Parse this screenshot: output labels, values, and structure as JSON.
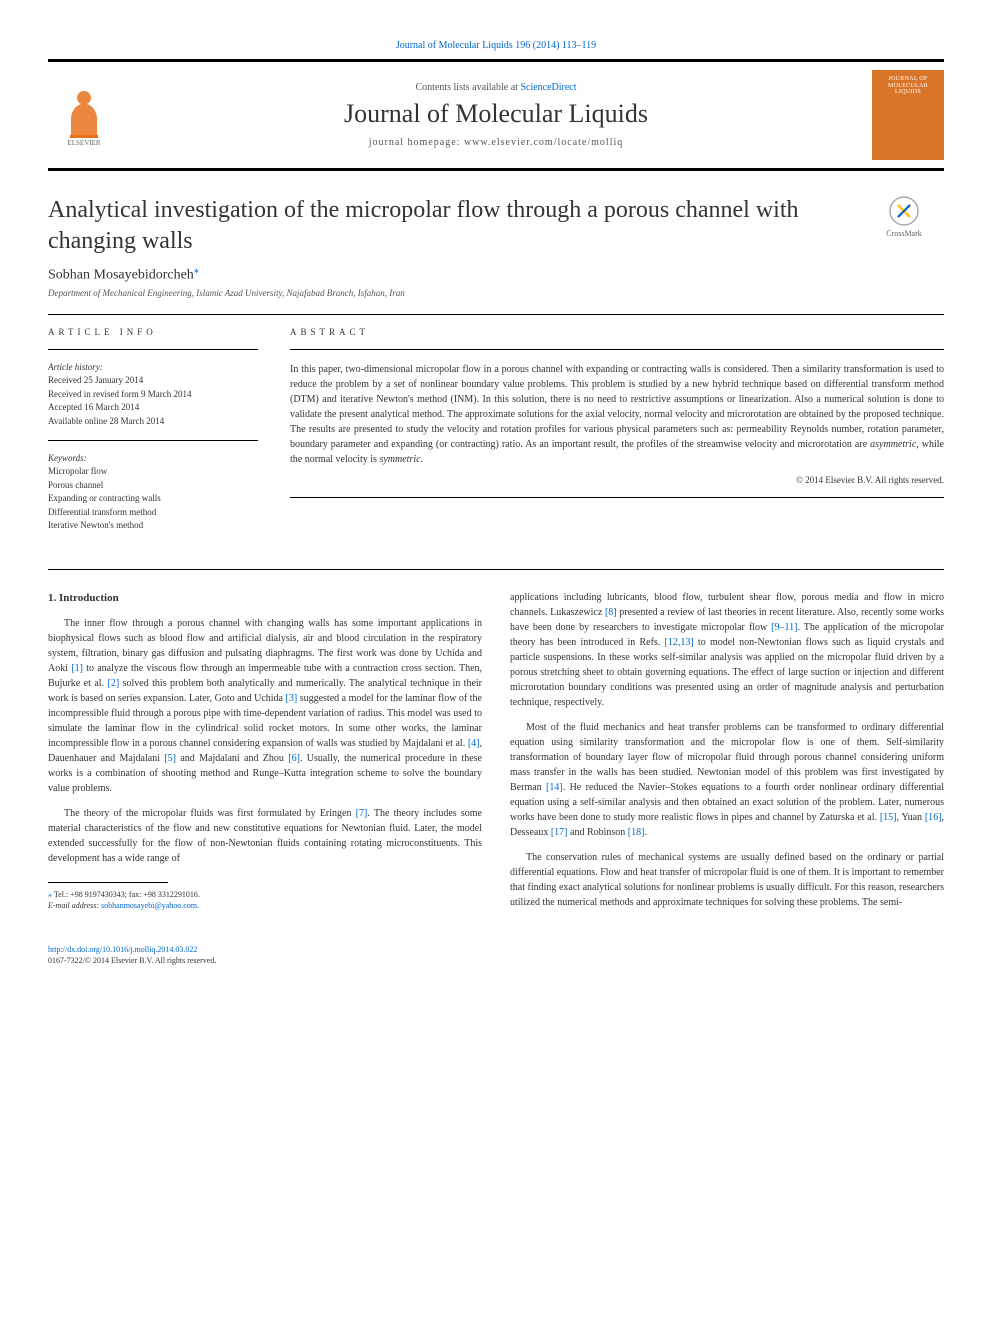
{
  "header": {
    "top_link": "Journal of Molecular Liquids 196 (2014) 113–119",
    "contents_prefix": "Contents lists available at ",
    "contents_link": "ScienceDirect",
    "journal_name": "Journal of Molecular Liquids",
    "homepage_label": "journal homepage: ",
    "homepage_url": "www.elsevier.com/locate/molliq",
    "cover_line1": "JOURNAL OF",
    "cover_line2": "MOLECULAR",
    "cover_line3": "LIQUIDS",
    "crossmark_label": "CrossMark",
    "elsevier_logo_color": "#e9711c",
    "cover_bg": "#d97528"
  },
  "article": {
    "title": "Analytical investigation of the micropolar flow through a porous channel with changing walls",
    "author": "Sobhan Mosayebidorcheh",
    "author_mark": "⁎",
    "affiliation": "Department of Mechanical Engineering, Islamic Azad University, Najafabad Branch, Isfahan, Iran"
  },
  "info": {
    "heading": "ARTICLE INFO",
    "history_title": "Article history:",
    "history": [
      "Received 25 January 2014",
      "Received in revised form 9 March 2014",
      "Accepted 16 March 2014",
      "Available online 28 March 2014"
    ],
    "keywords_title": "Keywords:",
    "keywords": [
      "Micropolar flow",
      "Porous channel",
      "Expanding or contracting walls",
      "Differential transform method",
      "Iterative Newton's method"
    ]
  },
  "abstract": {
    "heading": "ABSTRACT",
    "text": "In this paper, two-dimensional micropolar flow in a porous channel with expanding or contracting walls is considered. Then a similarity transformation is used to reduce the problem by a set of nonlinear boundary value problems. This problem is studied by a new hybrid technique based on differential transform method (DTM) and iterative Newton's method (INM). In this solution, there is no need to restrictive assumptions or linearization. Also a numerical solution is done to validate the present analytical method. The approximate solutions for the axial velocity, normal velocity and microrotation are obtained by the proposed technique. The results are presented to study the velocity and rotation profiles for various physical parameters such as: permeability Reynolds number, rotation parameter, boundary parameter and expanding (or contracting) ratio. As an important result, the profiles of the streamwise velocity and microrotation are asymmetric, while the normal velocity is symmetric.",
    "copyright": "© 2014 Elsevier B.V. All rights reserved."
  },
  "body": {
    "section_heading": "1. Introduction",
    "col1_p1": "The inner flow through a porous channel with changing walls has some important applications in biophysical flows such as blood flow and artificial dialysis, air and blood circulation in the respiratory system, filtration, binary gas diffusion and pulsating diaphragms. The first work was done by Uchida and Aoki [1] to analyze the viscous flow through an impermeable tube with a contraction cross section. Then, Bujurke et al. [2] solved this problem both analytically and numerically. The analytical technique in their work is based on series expansion. Later, Goto and Uchida [3] suggested a model for the laminar flow of the incompressible fluid through a porous pipe with time-dependent variation of radius. This model was used to simulate the laminar flow in the cylindrical solid rocket motors. In some other works, the laminar incompressible flow in a porous channel considering expansion of walls was studied by Majdalani et al. [4], Dauenhauer and Majdalani [5] and Majdalani and Zhou [6]. Usually, the numerical procedure in these works is a combination of shooting method and Runge–Kutta integration scheme to solve the boundary value problems.",
    "col1_p2": "The theory of the micropolar fluids was first formulated by Eringen [7]. The theory includes some material characteristics of the flow and new constitutive equations for Newtonian fluid. Later, the model extended successfully for the flow of non-Newtonian fluids containing rotating microconstituents. This development has a wide range of",
    "col2_p1": "applications including lubricants, blood flow, turbulent shear flow, porous media and flow in micro channels. Lukaszewicz [8] presented a review of last theories in recent literature. Also, recently some works have been done by researchers to investigate micropolar flow [9–11]. The application of the micropolar theory has been introduced in Refs. [12,13] to model non-Newtonian flows such as liquid crystals and particle suspensions. In these works self-similar analysis was applied on the micropolar fluid driven by a porous stretching sheet to obtain governing equations. The effect of large suction or injection and different microrotation boundary conditions was presented using an order of magnitude analysis and perturbation technique, respectively.",
    "col2_p2": "Most of the fluid mechanics and heat transfer problems can be transformed to ordinary differential equation using similarity transformation and the micropolar flow is one of them. Self-similarity transformation of boundary layer flow of micropolar fluid through porous channel considering uniform mass transfer in the walls has been studied. Newtonian model of this problem was first investigated by Berman [14]. He reduced the Navier–Stokes equations to a fourth order nonlinear ordinary differential equation using a self-similar analysis and then obtained an exact solution of the problem. Later, numerous works have been done to study more realistic flows in pipes and channel by Zaturska et al. [15], Yuan [16], Desseaux [17] and Robinson [18].",
    "col2_p3": "The conservation rules of mechanical systems are usually defined based on the ordinary or partial differential equations. Flow and heat transfer of micropolar fluid is one of them. It is important to remember that finding exact analytical solutions for nonlinear problems is usually difficult. For this reason, researchers utilized the numerical methods and approximate techniques for solving these problems. The semi-"
  },
  "footnote": {
    "mark": "⁎",
    "tel": "Tel.: +98 9197430343; fax: +98 3312291016.",
    "email_label": "E-mail address: ",
    "email": "sobhanmosayebi@yahoo.com",
    "email_suffix": "."
  },
  "footer": {
    "doi": "http://dx.doi.org/10.1016/j.molliq.2014.03.022",
    "issn_line": "0167-7322/© 2014 Elsevier B.V. All rights reserved."
  },
  "colors": {
    "link": "#0066cc",
    "text": "#333333",
    "muted": "#555555",
    "border": "#000000"
  }
}
